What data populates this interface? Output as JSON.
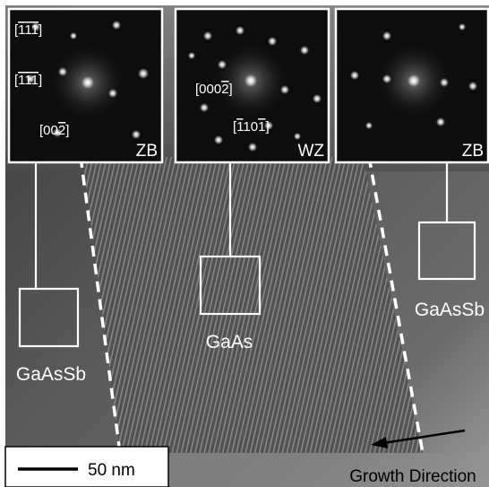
{
  "insets": [
    {
      "phase": "ZB",
      "index_labels": [
        {
          "t": "[",
          "o": "111",
          "c": "]"
        },
        {
          "t": "[",
          "o": "111",
          "c": "]"
        },
        {
          "t": "[00",
          "o": "2",
          "c": "]"
        }
      ]
    },
    {
      "phase": "WZ",
      "index_labels": [
        {
          "t": "[000",
          "o": "2",
          "c": "]"
        },
        {
          "t": "[",
          "o": "1",
          "m": "10",
          "o2": "1",
          "c": "]"
        }
      ]
    },
    {
      "phase": "ZB",
      "index_labels": []
    }
  ],
  "regions": [
    {
      "label": "GaAsSb"
    },
    {
      "label": "GaAs"
    },
    {
      "label": "GaAsSb"
    }
  ],
  "scale_bar": {
    "label": "50 nm"
  },
  "growth_direction": {
    "label": "Growth Direction"
  }
}
